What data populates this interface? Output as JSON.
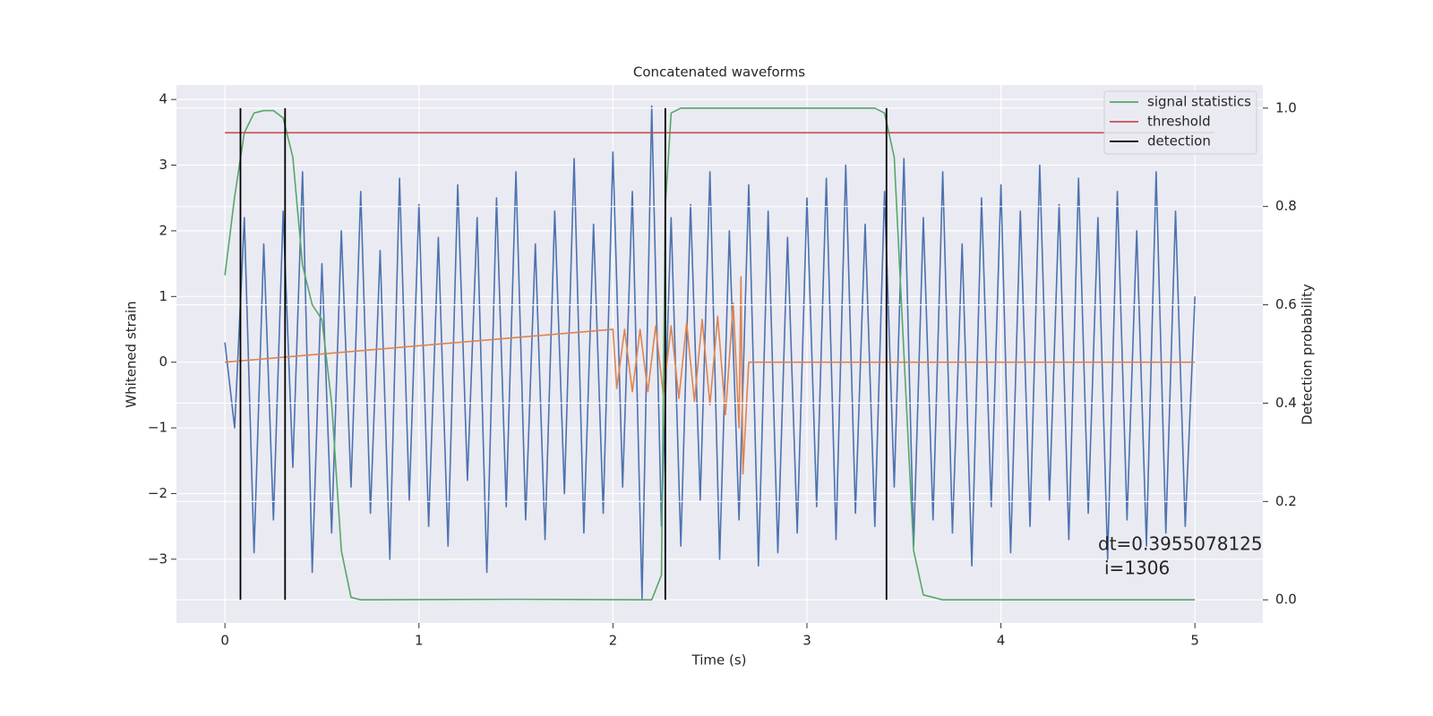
{
  "chart_data": {
    "type": "line",
    "title": "Concatenated waveforms",
    "x_label": "Time (s)",
    "y_label": "Whitened strain",
    "y2_label": "Detection probability",
    "xlim": [
      -0.25,
      5.35
    ],
    "ylim": [
      -3.97,
      4.22
    ],
    "y2lim": [
      -0.047,
      1.047
    ],
    "xticks": [
      0,
      1,
      2,
      3,
      4,
      5
    ],
    "yticks": [
      {
        "value": -3,
        "label": "−3"
      },
      {
        "value": -2,
        "label": "−2"
      },
      {
        "value": -1,
        "label": "−1"
      },
      0,
      1,
      2,
      3,
      4
    ],
    "y2ticks": [
      {
        "value": 0,
        "label": "0.0"
      },
      0.2,
      0.4,
      0.6,
      0.8,
      {
        "value": 1,
        "label": "1.0"
      }
    ],
    "grid": true,
    "legend": "upper right",
    "annotation": [
      "dt=0.3955078125",
      "i=1306"
    ],
    "series": [
      {
        "color": "#4c72b0",
        "x": [
          0,
          0.05,
          0.1,
          0.15,
          0.2,
          0.25,
          0.3,
          0.35,
          0.4,
          0.45,
          0.5,
          0.55,
          0.6,
          0.65,
          0.7,
          0.75,
          0.8,
          0.85,
          0.9,
          0.95,
          1,
          1.05,
          1.1,
          1.15,
          1.2,
          1.25,
          1.3,
          1.35,
          1.4,
          1.45,
          1.5,
          1.55,
          1.6,
          1.65,
          1.7,
          1.75,
          1.8,
          1.85,
          1.9,
          1.95,
          2,
          2.05,
          2.1,
          2.15,
          2.2,
          2.25,
          2.3,
          2.35,
          2.4,
          2.45,
          2.5,
          2.55,
          2.6,
          2.65,
          2.7,
          2.75,
          2.8,
          2.85,
          2.9,
          2.95,
          3,
          3.05,
          3.1,
          3.15,
          3.2,
          3.25,
          3.3,
          3.35,
          3.4,
          3.45,
          3.5,
          3.55,
          3.6,
          3.65,
          3.7,
          3.75,
          3.8,
          3.85,
          3.9,
          3.95,
          4,
          4.05,
          4.1,
          4.15,
          4.2,
          4.25,
          4.3,
          4.35,
          4.4,
          4.45,
          4.5,
          4.55,
          4.6,
          4.65,
          4.7,
          4.75,
          4.8,
          4.85,
          4.9,
          4.95,
          5
        ],
        "values": [
          0.3,
          -1.0,
          2.2,
          -2.9,
          1.8,
          -2.4,
          2.3,
          -1.6,
          2.9,
          -3.2,
          1.5,
          -2.6,
          2.0,
          -1.9,
          2.6,
          -2.3,
          1.7,
          -3.0,
          2.8,
          -2.1,
          2.4,
          -2.5,
          1.9,
          -2.8,
          2.7,
          -1.8,
          2.2,
          -3.2,
          2.5,
          -2.2,
          2.9,
          -2.4,
          1.8,
          -2.7,
          2.3,
          -2.0,
          3.1,
          -2.6,
          2.1,
          -2.3,
          3.2,
          -1.9,
          2.6,
          -3.6,
          3.9,
          -2.5,
          2.2,
          -2.8,
          2.4,
          -2.1,
          2.9,
          -3.0,
          2.0,
          -2.4,
          2.7,
          -3.1,
          2.3,
          -2.9,
          1.9,
          -2.6,
          2.5,
          -2.2,
          2.8,
          -2.7,
          3.0,
          -2.3,
          2.1,
          -2.5,
          2.6,
          -1.9,
          3.1,
          -2.8,
          2.2,
          -2.4,
          2.9,
          -2.6,
          1.8,
          -3.1,
          2.5,
          -2.2,
          2.7,
          -2.9,
          2.3,
          -2.5,
          3.0,
          -2.1,
          2.4,
          -2.7,
          2.8,
          -2.3,
          2.2,
          -3.0,
          2.6,
          -2.4,
          2.0,
          -2.8,
          2.9,
          -2.6,
          2.3,
          -2.5,
          1.0
        ]
      },
      {
        "color": "#dd8452",
        "x": [
          0,
          2.0,
          2.02,
          2.06,
          2.1,
          2.14,
          2.18,
          2.22,
          2.26,
          2.3,
          2.34,
          2.38,
          2.42,
          2.46,
          2.5,
          2.54,
          2.58,
          2.62,
          2.65,
          2.66,
          2.67,
          2.7,
          5.0
        ],
        "values": [
          0,
          0.5,
          -0.4,
          0.5,
          -0.45,
          0.5,
          -0.45,
          0.55,
          -0.5,
          0.55,
          -0.55,
          0.6,
          -0.6,
          0.65,
          -0.65,
          0.7,
          -0.8,
          0.9,
          -1.0,
          1.3,
          -1.7,
          0,
          0
        ]
      },
      {
        "name": "signal statistics",
        "color": "#55a868",
        "axis": "y2",
        "x": [
          0,
          0.05,
          0.1,
          0.15,
          0.2,
          0.25,
          0.3,
          0.35,
          0.4,
          0.45,
          0.5,
          0.55,
          0.6,
          0.65,
          0.7,
          1.5,
          2.2,
          2.25,
          2.27,
          2.3,
          2.35,
          3.35,
          3.4,
          3.45,
          3.5,
          3.55,
          3.6,
          3.7,
          5.0
        ],
        "values": [
          0.66,
          0.82,
          0.95,
          0.99,
          0.995,
          0.995,
          0.98,
          0.9,
          0.68,
          0.6,
          0.57,
          0.4,
          0.1,
          0.005,
          0,
          0.001,
          0,
          0.05,
          0.8,
          0.99,
          1.0,
          1.0,
          0.99,
          0.9,
          0.5,
          0.1,
          0.01,
          0,
          0
        ]
      },
      {
        "name": "threshold",
        "color": "#c44e52",
        "axis": "y2",
        "x": [
          0,
          5.1
        ],
        "values": [
          0.95,
          0.95
        ]
      }
    ],
    "vlines": {
      "name": "detection",
      "color": "#000000",
      "axis": "y2",
      "x": [
        0.08,
        0.31,
        2.27,
        3.41
      ],
      "ymin": 0,
      "ymax": 1
    }
  }
}
